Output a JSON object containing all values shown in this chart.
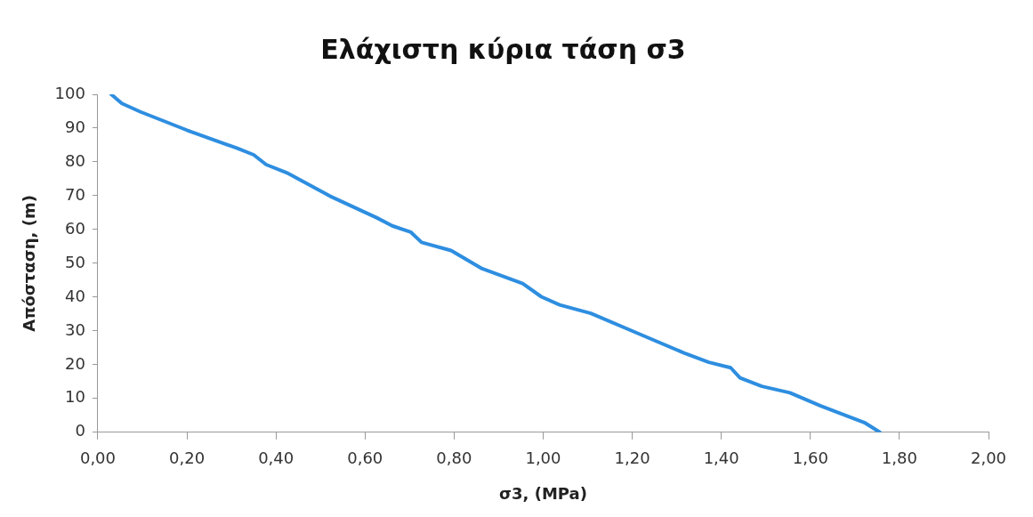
{
  "chart_data": {
    "type": "line",
    "title": "Ελάχιστη κύρια τάση σ3",
    "xlabel": "σ3, (MPa)",
    "ylabel": "Απόσταση, (m)",
    "xlim": [
      0,
      2
    ],
    "xticks": [
      {
        "value": 0,
        "label": "0,00"
      },
      {
        "value": 0.2,
        "label": "0,20"
      },
      {
        "value": 0.4,
        "label": "0,40"
      },
      {
        "value": 0.6,
        "label": "0,60"
      },
      {
        "value": 0.8,
        "label": "0,80"
      },
      {
        "value": 1,
        "label": "1,00"
      },
      {
        "value": 1.2,
        "label": "1,20"
      },
      {
        "value": 1.4,
        "label": "1,40"
      },
      {
        "value": 1.6,
        "label": "1,60"
      },
      {
        "value": 1.8,
        "label": "1,80"
      },
      {
        "value": 2,
        "label": "2,00"
      }
    ],
    "ylim": [
      0,
      100
    ],
    "yticks": [
      0,
      10,
      20,
      30,
      40,
      50,
      60,
      70,
      80,
      90,
      100
    ],
    "grid": false,
    "legend": false,
    "marker": "none",
    "line_style": "solid",
    "series": [
      {
        "color": "#2e8ee0",
        "x": [
          0.03,
          0.054,
          0.096,
          0.2,
          0.312,
          0.35,
          0.378,
          0.424,
          0.521,
          0.626,
          0.661,
          0.703,
          0.727,
          0.793,
          0.863,
          0.954,
          0.996,
          1.037,
          1.107,
          1.212,
          1.316,
          1.372,
          1.421,
          1.442,
          1.491,
          1.554,
          1.623,
          1.721,
          1.756
        ],
        "values": [
          100,
          97.3,
          94.8,
          89.4,
          84.1,
          82.1,
          79.2,
          76.8,
          69.9,
          63.5,
          61.1,
          59.2,
          56.2,
          53.8,
          48.4,
          44.0,
          40.1,
          37.7,
          35.2,
          29.3,
          23.5,
          20.7,
          19.1,
          16.1,
          13.6,
          11.7,
          7.8,
          2.9,
          0
        ]
      }
    ]
  }
}
